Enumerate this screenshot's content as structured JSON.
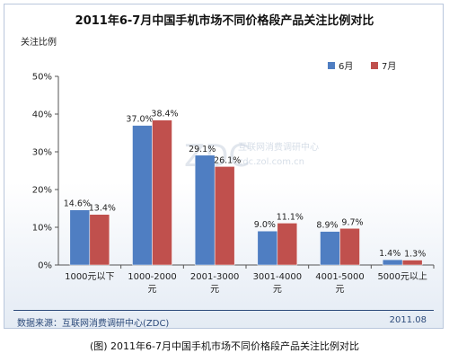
{
  "chart_data": {
    "type": "bar",
    "title": "2011年6-7月中国手机市场不同价格段产品关注比例对比",
    "ylabel": "关注比例",
    "xlabel": "",
    "ylim": [
      0,
      50
    ],
    "yticks": [
      "0%",
      "10%",
      "20%",
      "30%",
      "40%",
      "50%"
    ],
    "categories": [
      "1000元以下",
      "1000-2000元",
      "2001-3000元",
      "3001-4000元",
      "4001-5000元",
      "5000元以上"
    ],
    "series": [
      {
        "name": "6月",
        "color": "#4f7ec2",
        "values": [
          14.6,
          37.0,
          29.1,
          9.0,
          8.9,
          1.4
        ],
        "labels": [
          "14.6%",
          "37.0%",
          "29.1%",
          "9.0%",
          "8.9%",
          "1.4%"
        ]
      },
      {
        "name": "7月",
        "color": "#c0504d",
        "values": [
          13.4,
          38.4,
          26.1,
          11.1,
          9.7,
          1.3
        ],
        "labels": [
          "13.4%",
          "38.4%",
          "26.1%",
          "11.1%",
          "9.7%",
          "1.3%"
        ]
      }
    ],
    "legend_position": "top-right",
    "grid": false
  },
  "footer": {
    "source": "数据来源：互联网消费调研中心(ZDC)",
    "date": "2011.08"
  },
  "caption": "(图) 2011年6-7月中国手机市场不同价格段产品关注比例对比",
  "watermark": {
    "logo": "ZDC",
    "text": "互联网消费调研中心",
    "url": "zdc.zol.com.cn"
  }
}
